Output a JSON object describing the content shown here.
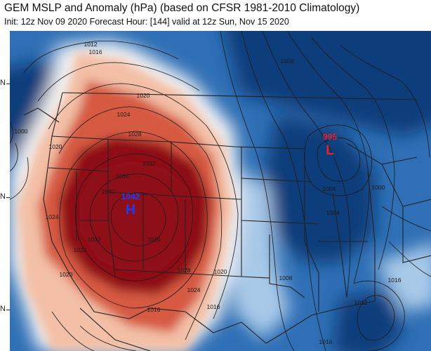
{
  "header": {
    "title": "GEM MSLP and Anomaly (hPa) (based on CFSR 1981-2010 Climatology)",
    "subtitle": "Init: 12z Nov 09 2020   Forecast Hour: [144]   valid at 12z Sun, Nov 15 2020"
  },
  "axis": {
    "lat_labels": [
      "N",
      "N",
      "N"
    ]
  },
  "pressure_centers": [
    {
      "type_label": "H",
      "value": "1042",
      "color": "#1a3cff"
    },
    {
      "type_label": "L",
      "value": "995",
      "color": "#e8222a"
    }
  ],
  "isobar_labels": [
    "1012",
    "1016",
    "1020",
    "1024",
    "1028",
    "1032",
    "1036",
    "1040",
    "1020",
    "1024",
    "1028",
    "1028",
    "1032",
    "1036",
    "1020",
    "1016",
    "1016",
    "1008",
    "1004",
    "1000",
    "1008",
    "1016",
    "1012",
    "1016",
    "1004",
    "1000",
    "1024",
    "1020"
  ],
  "colors": {
    "strong_negative": "#0a3d7a",
    "negative": "#2f6fb5",
    "weak_negative": "#a9c9e8",
    "neutral": "#f4f4f4",
    "weak_positive": "#f3bfa6",
    "positive": "#d65a43",
    "strong_positive": "#8f1018",
    "contour": "#1a1a1a",
    "border": "#222222"
  }
}
